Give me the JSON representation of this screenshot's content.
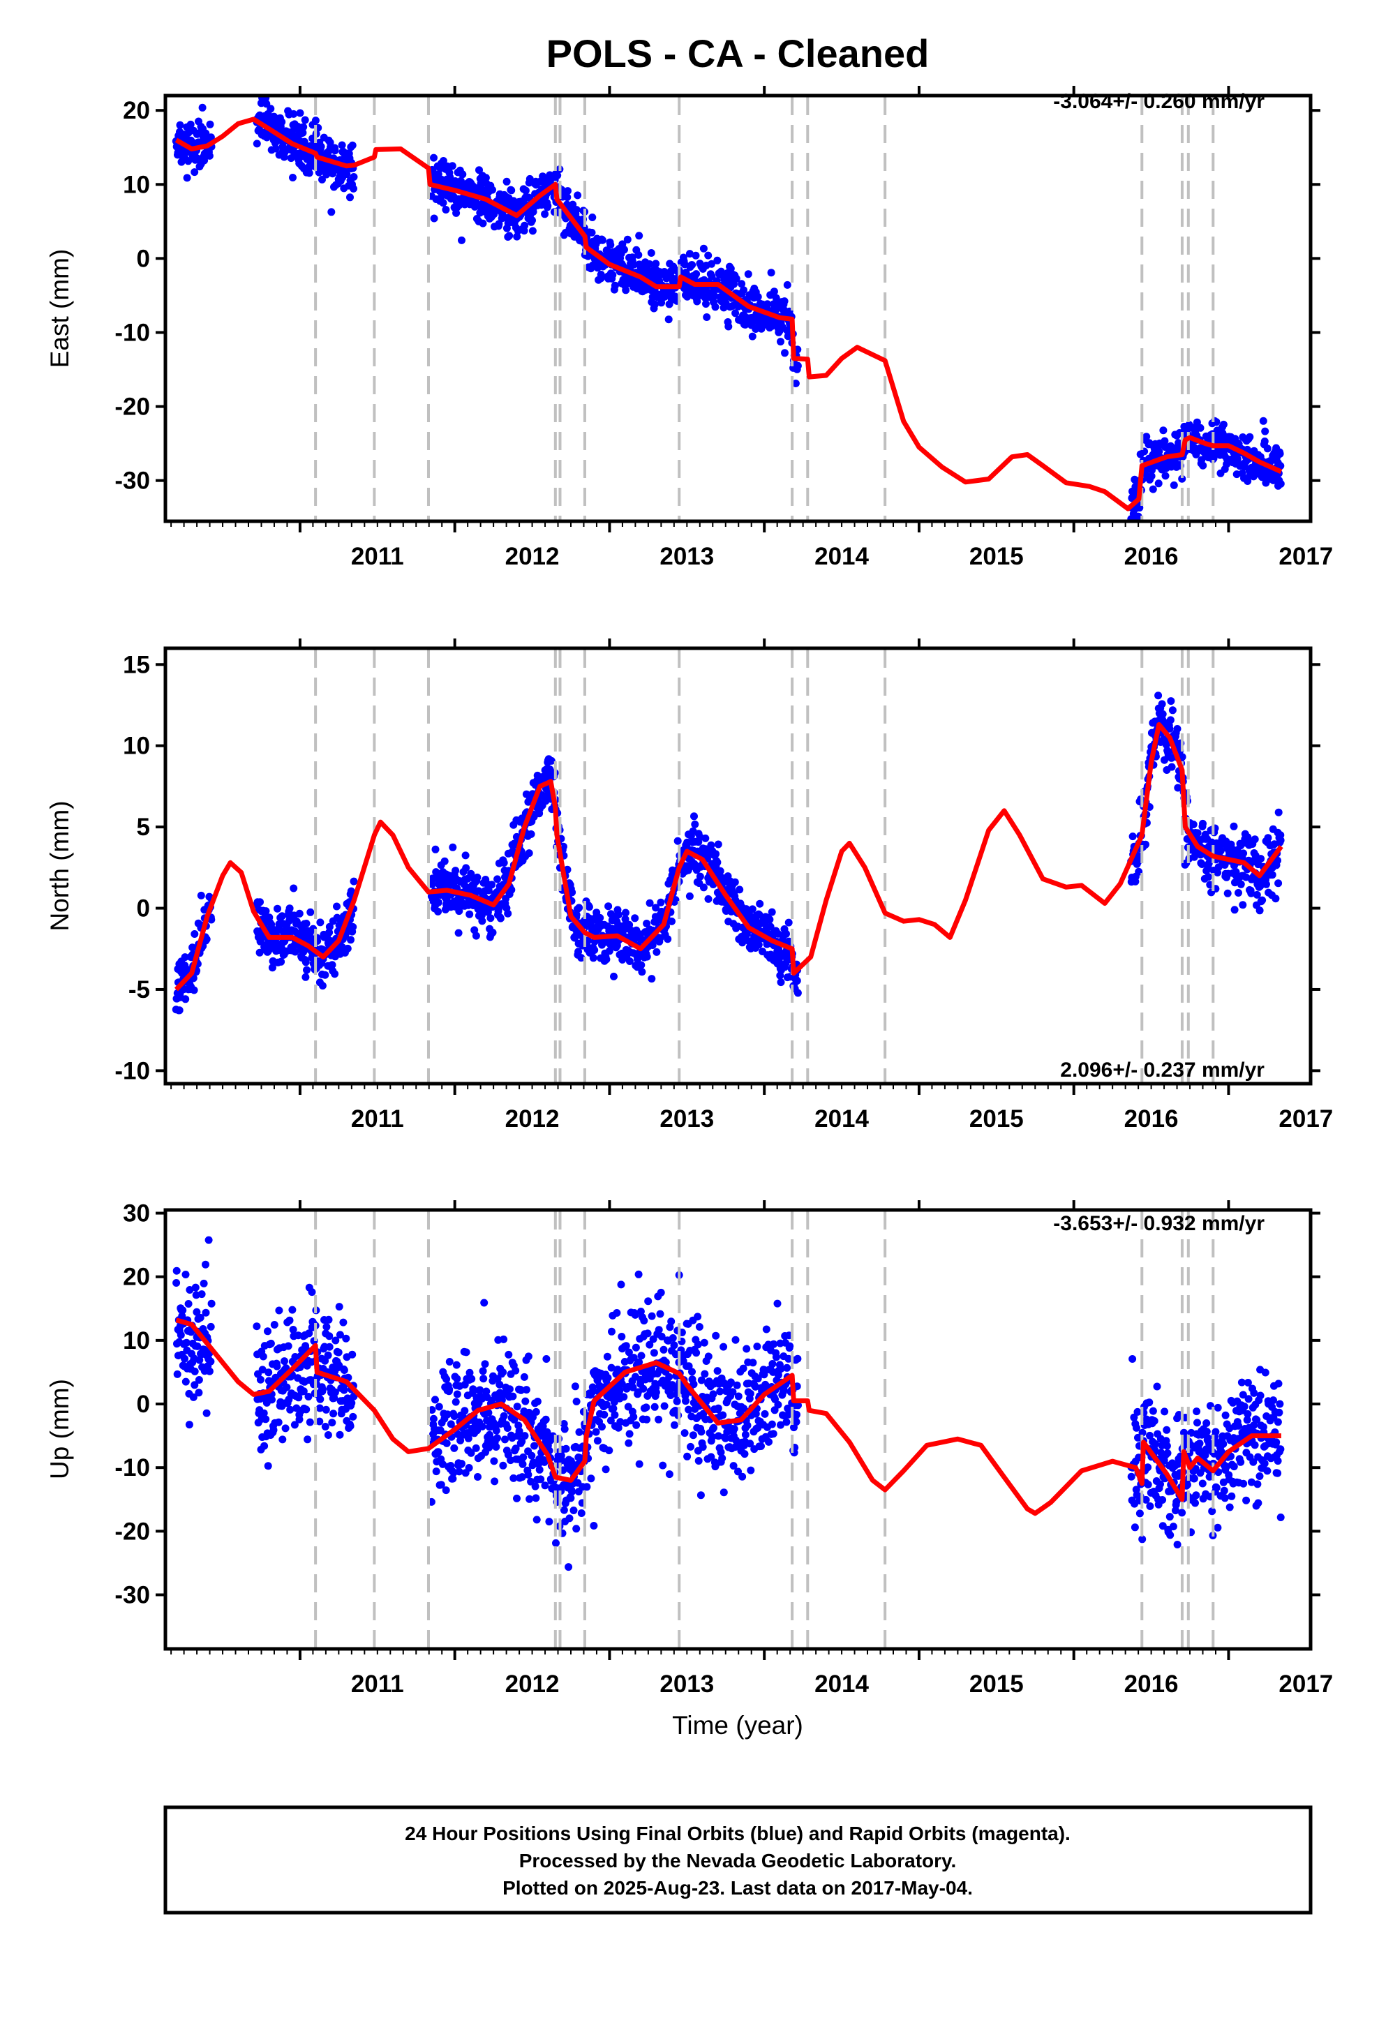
{
  "chart_data": {
    "type": "scatter",
    "title": "POLS  - CA - Cleaned",
    "xlabel": "Time (year)",
    "xlim": [
      2010.13,
      2017.53
    ],
    "x_ticks": [
      "2011",
      "2012",
      "2013",
      "2014",
      "2015",
      "2016",
      "2017"
    ],
    "series_colors": {
      "final_orbits": "#0000ff",
      "rapid_orbits": "#ff00ff",
      "model": "#ff0000",
      "event_lines": "#c0c0c0"
    },
    "event_lines": [
      2011.1,
      2011.48,
      2011.83,
      2012.65,
      2012.68,
      2012.84,
      2013.45,
      2014.18,
      2014.28,
      2014.78,
      2016.44,
      2016.7,
      2016.74,
      2016.9
    ],
    "data_segments": [
      [
        2010.2,
        2010.43
      ],
      [
        2010.72,
        2011.35
      ],
      [
        2011.85,
        2014.22
      ],
      [
        2016.37,
        2017.34
      ]
    ],
    "panels": [
      {
        "ylabel": "East (mm)",
        "ylim": [
          -35.5,
          22
        ],
        "yticks": [
          20,
          10,
          0,
          -10,
          -20,
          -30
        ],
        "rate_label": "-3.064+/- 0.260 mm/yr",
        "rate_position": "top-right",
        "model_curve": [
          [
            2010.2,
            16
          ],
          [
            2010.3,
            14.8
          ],
          [
            2010.4,
            15.2
          ],
          [
            2010.5,
            16.5
          ],
          [
            2010.6,
            18.2
          ],
          [
            2010.7,
            18.8
          ],
          [
            2010.8,
            17.5
          ],
          [
            2010.95,
            15.5
          ],
          [
            2011.1,
            14.2
          ],
          [
            2011.11,
            13.7
          ],
          [
            2011.3,
            12.5
          ],
          [
            2011.35,
            12.6
          ],
          [
            2011.48,
            13.7
          ],
          [
            2011.49,
            14.7
          ],
          [
            2011.65,
            14.8
          ],
          [
            2011.83,
            12.2
          ],
          [
            2011.84,
            10
          ],
          [
            2012.0,
            9.2
          ],
          [
            2012.2,
            8
          ],
          [
            2012.4,
            5.8
          ],
          [
            2012.55,
            8.5
          ],
          [
            2012.65,
            10
          ],
          [
            2012.66,
            8
          ],
          [
            2012.84,
            3
          ],
          [
            2012.85,
            1.5
          ],
          [
            2013.0,
            -0.8
          ],
          [
            2013.2,
            -2.5
          ],
          [
            2013.3,
            -3.8
          ],
          [
            2013.45,
            -3.8
          ],
          [
            2013.46,
            -2.5
          ],
          [
            2013.55,
            -3.5
          ],
          [
            2013.7,
            -3.5
          ],
          [
            2013.9,
            -6.5
          ],
          [
            2014.1,
            -8
          ],
          [
            2014.18,
            -8.2
          ],
          [
            2014.19,
            -13.5
          ],
          [
            2014.28,
            -13.6
          ],
          [
            2014.29,
            -16
          ],
          [
            2014.4,
            -15.8
          ],
          [
            2014.5,
            -13.5
          ],
          [
            2014.6,
            -12
          ],
          [
            2014.78,
            -13.8
          ],
          [
            2014.9,
            -22
          ],
          [
            2015.0,
            -25.5
          ],
          [
            2015.15,
            -28.2
          ],
          [
            2015.3,
            -30.2
          ],
          [
            2015.45,
            -29.8
          ],
          [
            2015.6,
            -26.8
          ],
          [
            2015.7,
            -26.5
          ],
          [
            2015.8,
            -28
          ],
          [
            2015.95,
            -30.3
          ],
          [
            2016.1,
            -30.8
          ],
          [
            2016.2,
            -31.5
          ],
          [
            2016.35,
            -33.8
          ],
          [
            2016.42,
            -32.5
          ],
          [
            2016.44,
            -28
          ],
          [
            2016.6,
            -26.8
          ],
          [
            2016.7,
            -26.5
          ],
          [
            2016.72,
            -24.5
          ],
          [
            2016.75,
            -24.2
          ],
          [
            2016.85,
            -25
          ],
          [
            2016.9,
            -25.3
          ],
          [
            2017.0,
            -25.3
          ],
          [
            2017.1,
            -26.3
          ],
          [
            2017.2,
            -27.5
          ],
          [
            2017.34,
            -28.8
          ]
        ]
      },
      {
        "ylabel": "North (mm)",
        "ylim": [
          -10.8,
          16
        ],
        "yticks": [
          15,
          10,
          5,
          0,
          -5,
          -10
        ],
        "rate_label": "2.096+/- 0.237 mm/yr",
        "rate_position": "bottom-right",
        "model_curve": [
          [
            2010.2,
            -5
          ],
          [
            2010.3,
            -4
          ],
          [
            2010.4,
            -0.5
          ],
          [
            2010.5,
            2
          ],
          [
            2010.55,
            2.8
          ],
          [
            2010.62,
            2.2
          ],
          [
            2010.7,
            -0.2
          ],
          [
            2010.8,
            -1.8
          ],
          [
            2010.95,
            -1.8
          ],
          [
            2011.05,
            -2.3
          ],
          [
            2011.15,
            -3
          ],
          [
            2011.25,
            -2
          ],
          [
            2011.35,
            0.5
          ],
          [
            2011.48,
            4.5
          ],
          [
            2011.52,
            5.3
          ],
          [
            2011.6,
            4.5
          ],
          [
            2011.7,
            2.5
          ],
          [
            2011.83,
            1
          ],
          [
            2011.95,
            1.1
          ],
          [
            2012.1,
            0.8
          ],
          [
            2012.25,
            0.2
          ],
          [
            2012.35,
            1.5
          ],
          [
            2012.45,
            5
          ],
          [
            2012.55,
            7.5
          ],
          [
            2012.62,
            7.8
          ],
          [
            2012.65,
            6.2
          ],
          [
            2012.66,
            4.5
          ],
          [
            2012.75,
            -0.5
          ],
          [
            2012.84,
            -1.5
          ],
          [
            2012.9,
            -1.8
          ],
          [
            2013.05,
            -1.7
          ],
          [
            2013.2,
            -2.5
          ],
          [
            2013.35,
            -1
          ],
          [
            2013.45,
            2.5
          ],
          [
            2013.5,
            3.5
          ],
          [
            2013.6,
            3
          ],
          [
            2013.75,
            0.8
          ],
          [
            2013.9,
            -1.2
          ],
          [
            2014.05,
            -2
          ],
          [
            2014.18,
            -2.5
          ],
          [
            2014.19,
            -4
          ],
          [
            2014.3,
            -3
          ],
          [
            2014.4,
            0.5
          ],
          [
            2014.5,
            3.5
          ],
          [
            2014.55,
            4
          ],
          [
            2014.65,
            2.5
          ],
          [
            2014.78,
            -0.3
          ],
          [
            2014.9,
            -0.8
          ],
          [
            2015.0,
            -0.7
          ],
          [
            2015.1,
            -1
          ],
          [
            2015.2,
            -1.8
          ],
          [
            2015.3,
            0.5
          ],
          [
            2015.45,
            4.8
          ],
          [
            2015.55,
            6
          ],
          [
            2015.65,
            4.5
          ],
          [
            2015.8,
            1.8
          ],
          [
            2015.95,
            1.3
          ],
          [
            2016.05,
            1.4
          ],
          [
            2016.2,
            0.3
          ],
          [
            2016.3,
            1.5
          ],
          [
            2016.44,
            4.5
          ],
          [
            2016.5,
            9
          ],
          [
            2016.55,
            11.3
          ],
          [
            2016.62,
            10.5
          ],
          [
            2016.7,
            8.5
          ],
          [
            2016.72,
            5
          ],
          [
            2016.8,
            3.8
          ],
          [
            2016.9,
            3.2
          ],
          [
            2017.0,
            3
          ],
          [
            2017.1,
            2.8
          ],
          [
            2017.2,
            2
          ],
          [
            2017.34,
            3.8
          ]
        ]
      },
      {
        "ylabel": "Up (mm)",
        "ylim": [
          -38.5,
          30.5
        ],
        "yticks": [
          30,
          20,
          10,
          0,
          -10,
          -20,
          -30
        ],
        "rate_label": "-3.653+/- 0.932 mm/yr",
        "rate_position": "top-right",
        "model_curve": [
          [
            2010.2,
            13.2
          ],
          [
            2010.3,
            12.5
          ],
          [
            2010.45,
            8
          ],
          [
            2010.6,
            3.5
          ],
          [
            2010.7,
            1.5
          ],
          [
            2010.8,
            2
          ],
          [
            2010.95,
            5.5
          ],
          [
            2011.1,
            9.2
          ],
          [
            2011.11,
            5
          ],
          [
            2011.3,
            3.5
          ],
          [
            2011.48,
            -1
          ],
          [
            2011.6,
            -5.5
          ],
          [
            2011.7,
            -7.5
          ],
          [
            2011.83,
            -7
          ],
          [
            2012.0,
            -4
          ],
          [
            2012.15,
            -1
          ],
          [
            2012.3,
            0
          ],
          [
            2012.45,
            -2.5
          ],
          [
            2012.6,
            -8
          ],
          [
            2012.65,
            -11.5
          ],
          [
            2012.75,
            -12
          ],
          [
            2012.84,
            -9
          ],
          [
            2012.85,
            -5
          ],
          [
            2012.9,
            0.5
          ],
          [
            2013.1,
            5
          ],
          [
            2013.3,
            6.5
          ],
          [
            2013.45,
            4.8
          ],
          [
            2013.5,
            3
          ],
          [
            2013.6,
            0
          ],
          [
            2013.7,
            -3
          ],
          [
            2013.85,
            -2.5
          ],
          [
            2014.0,
            1.5
          ],
          [
            2014.18,
            4.5
          ],
          [
            2014.19,
            0.5
          ],
          [
            2014.28,
            0.5
          ],
          [
            2014.29,
            -1
          ],
          [
            2014.4,
            -1.5
          ],
          [
            2014.55,
            -6
          ],
          [
            2014.7,
            -12
          ],
          [
            2014.78,
            -13.5
          ],
          [
            2014.9,
            -10.5
          ],
          [
            2015.05,
            -6.5
          ],
          [
            2015.25,
            -5.5
          ],
          [
            2015.4,
            -6.5
          ],
          [
            2015.55,
            -11.5
          ],
          [
            2015.7,
            -16.5
          ],
          [
            2015.75,
            -17.2
          ],
          [
            2015.85,
            -15.5
          ],
          [
            2016.05,
            -10.5
          ],
          [
            2016.25,
            -9
          ],
          [
            2016.4,
            -10
          ],
          [
            2016.44,
            -12.5
          ],
          [
            2016.45,
            -6
          ],
          [
            2016.6,
            -11
          ],
          [
            2016.7,
            -15
          ],
          [
            2016.71,
            -7.5
          ],
          [
            2016.75,
            -10
          ],
          [
            2016.8,
            -8.5
          ],
          [
            2016.9,
            -10.5
          ],
          [
            2017.0,
            -7.5
          ],
          [
            2017.15,
            -5
          ],
          [
            2017.34,
            -5
          ]
        ]
      }
    ],
    "footer": [
      "24 Hour Positions Using Final Orbits (blue) and Rapid Orbits (magenta).",
      "Processed by the Nevada Geodetic Laboratory.",
      "Plotted on 2025-Aug-23. Last data on 2017-May-04."
    ]
  }
}
